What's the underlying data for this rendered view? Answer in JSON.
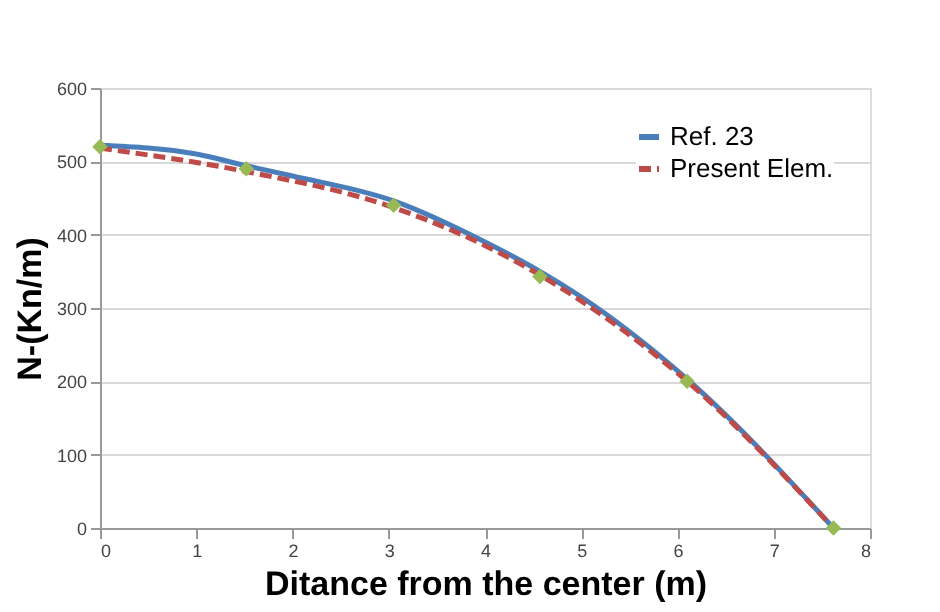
{
  "chart_data": {
    "type": "line",
    "xlabel": "Ditance from the center  (m)",
    "ylabel": "N-(Kn/m)",
    "xlim": [
      0,
      8
    ],
    "xticks": [
      0,
      1,
      2,
      3,
      4,
      5,
      6,
      7,
      8
    ],
    "ylim": [
      0,
      600
    ],
    "yticks": [
      0,
      100,
      200,
      300,
      400,
      500,
      600
    ],
    "grid": "y",
    "legend": "top right",
    "series": [
      {
        "name": "Ref. 23",
        "color": "#4a7ebb",
        "line_style": "solid",
        "marker": "none",
        "x": [
          0,
          1,
          1.52,
          2,
          3.05,
          4,
          4.57,
          5,
          6.1,
          7.62
        ],
        "values": [
          522,
          510,
          494,
          480,
          446,
          390,
          350,
          315,
          203,
          0
        ]
      },
      {
        "name": "Present Elem.",
        "color": "#be4b48",
        "line_style": "dashed",
        "marker": "none",
        "x": [
          0,
          1.52,
          3.05,
          4.57,
          6.1,
          7.62
        ],
        "values": [
          518,
          486,
          437,
          345,
          200,
          0
        ]
      },
      {
        "type": "scatter",
        "color": "#98b954",
        "marker": "diamond",
        "x": [
          0,
          1.52,
          3.05,
          4.57,
          6.1,
          7.62
        ],
        "values": [
          520,
          490,
          440,
          343,
          200,
          0
        ]
      }
    ]
  }
}
